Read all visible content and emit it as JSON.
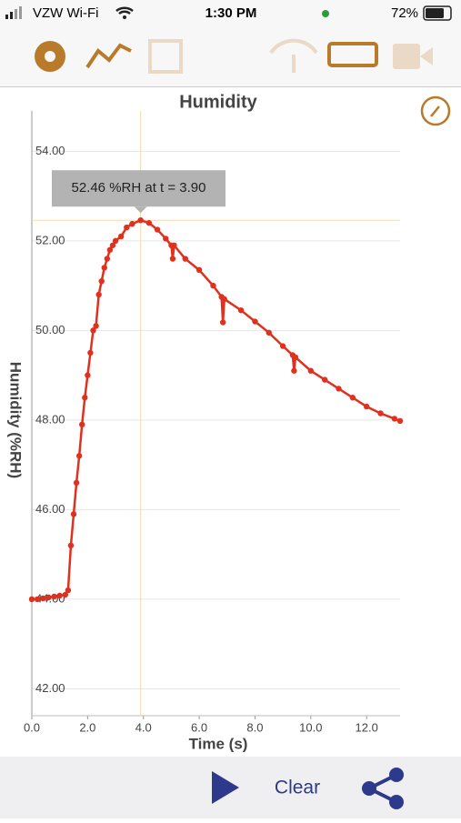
{
  "status_bar": {
    "carrier": "VZW Wi-Fi",
    "time": "1:30 PM",
    "battery": "72%"
  },
  "bottom_bar": {
    "clear": "Clear"
  },
  "chart_data": {
    "type": "line",
    "title": "Humidity",
    "x_label": "Time (s)",
    "y_label": "Humidity (%RH)",
    "color": "#e0301e",
    "grid": true,
    "x": [
      0.0,
      0.2,
      0.4,
      0.6,
      0.8,
      1.0,
      1.2,
      1.3,
      1.4,
      1.5,
      1.6,
      1.7,
      1.8,
      1.9,
      2.0,
      2.1,
      2.2,
      2.3,
      2.4,
      2.5,
      2.6,
      2.7,
      2.8,
      2.9,
      3.0,
      3.2,
      3.4,
      3.6,
      3.9,
      4.2,
      4.5,
      4.8,
      5.0,
      5.05,
      5.1,
      5.5,
      6.0,
      6.5,
      6.8,
      6.85,
      6.9,
      7.5,
      8.0,
      8.5,
      9.0,
      9.35,
      9.4,
      9.45,
      10.0,
      10.5,
      11.0,
      11.5,
      12.0,
      12.5,
      13.0,
      13.2
    ],
    "values": [
      44.0,
      44.0,
      44.02,
      44.04,
      44.06,
      44.08,
      44.1,
      44.2,
      45.2,
      45.9,
      46.6,
      47.2,
      47.9,
      48.5,
      49.0,
      49.5,
      50.0,
      50.1,
      50.8,
      51.1,
      51.4,
      51.6,
      51.8,
      51.9,
      52.0,
      52.1,
      52.3,
      52.38,
      52.46,
      52.4,
      52.25,
      52.05,
      51.9,
      51.6,
      51.9,
      51.6,
      51.35,
      51.0,
      50.75,
      50.18,
      50.7,
      50.45,
      50.2,
      49.95,
      49.65,
      49.45,
      49.1,
      49.4,
      49.1,
      48.9,
      48.7,
      48.5,
      48.3,
      48.15,
      48.03,
      47.98
    ],
    "xlim": [
      0,
      13.2
    ],
    "ylim": [
      41.4,
      54.9
    ],
    "xticks": [
      {
        "value": 0,
        "label": "0.0"
      },
      {
        "value": 2,
        "label": "2.0"
      },
      {
        "value": 4,
        "label": "4.0"
      },
      {
        "value": 6,
        "label": "6.0"
      },
      {
        "value": 8,
        "label": "8.0"
      },
      {
        "value": 10,
        "label": "10.0"
      },
      {
        "value": 12,
        "label": "12.0"
      }
    ],
    "yticks": [
      {
        "value": 42,
        "label": "42.00"
      },
      {
        "value": 44,
        "label": "44.00"
      },
      {
        "value": 46,
        "label": "46.00"
      },
      {
        "value": 48,
        "label": "48.00"
      },
      {
        "value": 50,
        "label": "50.00"
      },
      {
        "value": 52,
        "label": "52.00"
      },
      {
        "value": 54,
        "label": "54.00"
      }
    ],
    "crosshair": {
      "x": 3.9,
      "y": 52.46,
      "label": "52.46 %RH at t = 3.90"
    }
  }
}
